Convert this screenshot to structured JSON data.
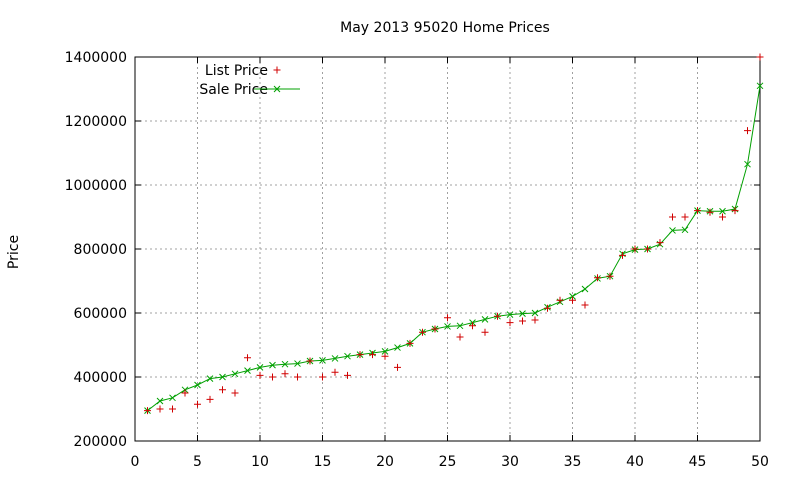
{
  "chart_data": {
    "type": "line",
    "title": "May 2013 95020 Home Prices",
    "xlabel": "",
    "ylabel": "Price",
    "xlim": [
      0,
      50
    ],
    "ylim": [
      200000,
      1400000
    ],
    "xticks": [
      "0",
      "5",
      "10",
      "15",
      "20",
      "25",
      "30",
      "35",
      "40",
      "45",
      "50"
    ],
    "yticks": [
      "200000",
      "400000",
      "600000",
      "800000",
      "1000000",
      "1200000",
      "1400000"
    ],
    "grid": true,
    "legend_position": "top-left",
    "x": [
      1,
      2,
      3,
      4,
      5,
      6,
      7,
      8,
      9,
      10,
      11,
      12,
      13,
      14,
      15,
      16,
      17,
      18,
      19,
      20,
      21,
      22,
      23,
      24,
      25,
      26,
      27,
      28,
      29,
      30,
      31,
      32,
      33,
      34,
      35,
      36,
      37,
      38,
      39,
      40,
      41,
      42,
      43,
      44,
      45,
      46,
      47,
      48,
      49,
      50
    ],
    "series": [
      {
        "name": "List Price",
        "style": "points",
        "marker": "+",
        "color": "#d00000",
        "values": [
          295000,
          300000,
          300000,
          350000,
          315000,
          330000,
          360000,
          350000,
          460000,
          405000,
          400000,
          410000,
          400000,
          450000,
          400000,
          415000,
          405000,
          470000,
          470000,
          465000,
          430000,
          505000,
          540000,
          550000,
          585000,
          525000,
          560000,
          540000,
          590000,
          570000,
          575000,
          578000,
          615000,
          640000,
          640000,
          625000,
          710000,
          715000,
          780000,
          800000,
          800000,
          820000,
          900000,
          900000,
          920000,
          915000,
          900000,
          920000,
          1170000,
          1400000
        ]
      },
      {
        "name": "Sale Price",
        "style": "linespoints",
        "marker": "x",
        "color": "#00a000",
        "values": [
          295000,
          325000,
          335000,
          360000,
          375000,
          395000,
          400000,
          410000,
          420000,
          430000,
          437000,
          440000,
          442000,
          450000,
          452000,
          458000,
          465000,
          470000,
          475000,
          480000,
          492000,
          505000,
          540000,
          550000,
          558000,
          560000,
          570000,
          580000,
          590000,
          595000,
          598000,
          600000,
          618000,
          635000,
          652000,
          675000,
          708000,
          715000,
          785000,
          798000,
          800000,
          815000,
          858000,
          860000,
          920000,
          918000,
          918000,
          925000,
          1065000,
          1310000
        ]
      }
    ]
  }
}
